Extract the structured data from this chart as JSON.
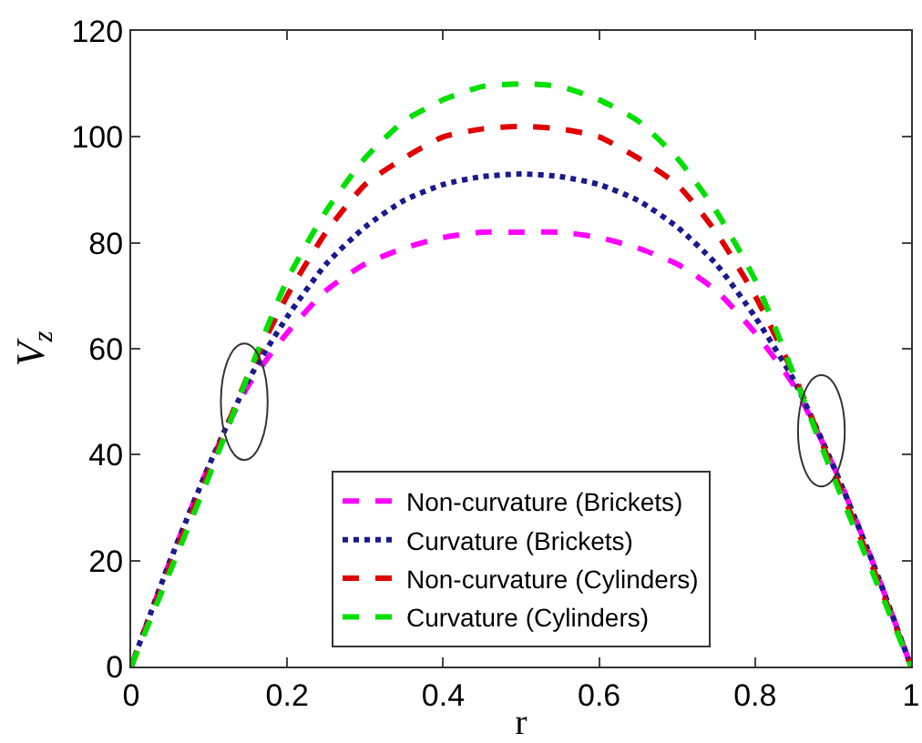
{
  "chart_data": {
    "type": "line",
    "xlabel": "r",
    "ylabel": "V$_{z}$",
    "x": [
      0,
      0.05,
      0.1,
      0.15,
      0.2,
      0.25,
      0.3,
      0.35,
      0.4,
      0.45,
      0.5,
      0.55,
      0.6,
      0.65,
      0.7,
      0.75,
      0.8,
      0.85,
      0.9,
      0.95,
      1
    ],
    "series": [
      {
        "name": "Non-curvature (Brickets)",
        "color": "#ff00ff",
        "line_style": "dashed",
        "values": [
          0,
          20,
          38,
          53,
          63,
          71,
          76,
          79,
          81,
          82,
          82,
          82,
          81,
          79,
          76,
          71,
          63,
          53,
          38,
          20,
          0
        ]
      },
      {
        "name": "Curvature (Brickets)",
        "color": "#1a1a8c",
        "line_style": "dotted",
        "values": [
          0,
          20,
          38,
          54,
          66,
          76,
          83,
          88,
          91,
          92.5,
          93,
          92.5,
          91,
          88,
          83,
          76,
          66,
          54,
          38,
          20,
          0
        ]
      },
      {
        "name": "Non-curvature (Cylinders)",
        "color": "#e00000",
        "line_style": "dashed",
        "values": [
          0,
          19,
          37,
          55,
          70,
          82,
          91,
          96,
          100,
          101.5,
          102,
          101.5,
          100,
          96,
          91,
          82,
          70,
          55,
          37,
          19,
          0
        ]
      },
      {
        "name": "Curvature (Cylinders)",
        "color": "#00e000",
        "line_style": "dashed",
        "values": [
          0,
          18,
          36,
          55,
          73,
          86,
          96,
          103,
          107,
          109.5,
          110,
          109.5,
          107,
          103,
          96,
          86,
          73,
          55,
          36,
          18,
          0
        ]
      }
    ],
    "xlim": [
      0,
      1
    ],
    "xticks": [
      0,
      0.2,
      0.4,
      0.6,
      0.8,
      1
    ],
    "ylim": [
      0,
      120
    ],
    "yticks": [
      0,
      20,
      40,
      60,
      80,
      100,
      120
    ],
    "grid": false,
    "legend": "bottom",
    "marker": "none"
  }
}
